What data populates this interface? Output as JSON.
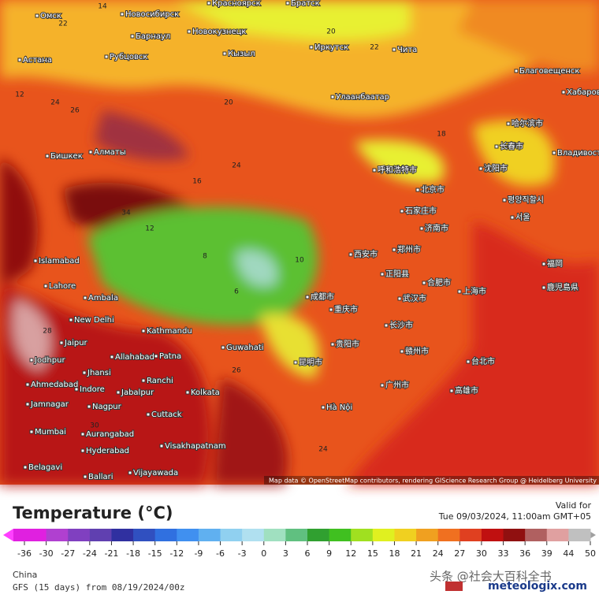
{
  "map": {
    "attribution": "Map data © OpenStreetMap contributors, rendering GIScience Research Group @ Heidelberg University",
    "cities": [
      "Омск",
      "Новосибирск",
      "Красноярск",
      "Братск",
      "Барнаул",
      "Новокузнецк",
      "Рубцовск",
      "Астана",
      "Кызыл",
      "Иркутск",
      "Чита",
      "Благовещенск",
      "Улаанбаатар",
      "Хабаровск",
      "哈尔滨市",
      "长春市",
      "Владивосток",
      "沈阳市",
      "Бишкек",
      "Алматы",
      "呼和浩特市",
      "北京市",
      "평양직할시",
      "서울",
      "石家庄市",
      "济南市",
      "Islamabad",
      "Lahore",
      "西安市",
      "郑州市",
      "福岡",
      "鹿児島県",
      "正阳县",
      "合肥市",
      "上海市",
      "成都市",
      "武汉市",
      "Ambala",
      "New Delhi",
      "Kathmandu",
      "重庆市",
      "长沙市",
      "Jaipur",
      "Guwahati",
      "Allahabad",
      "Patna",
      "贵阳市",
      "赣州市",
      "台北市",
      "Jodhpur",
      "昆明市",
      "Jhansi",
      "Ranchi",
      "Ahmedabad",
      "Indore",
      "Jabalpur",
      "广州市",
      "高雄市",
      "Kolkata",
      "Jamnagar",
      "Nagpur",
      "Hà Nội",
      "Cuttack",
      "Mumbai",
      "Aurangabad",
      "Hyderabad",
      "Visakhapatnam",
      "Belagavi",
      "Ballari",
      "Vijayawada"
    ],
    "temperatures": [
      14,
      22,
      12,
      16,
      20,
      20,
      18,
      24,
      26,
      34,
      12,
      10,
      8,
      6,
      22,
      24,
      26,
      30,
      28,
      24
    ]
  },
  "legend": {
    "title": "Temperature (°C)",
    "valid_label": "Valid for",
    "valid_time": "Tue 09/03/2024, 11:00am GMT+05",
    "ticks": [
      -36,
      -30,
      -27,
      -24,
      -21,
      -18,
      -15,
      -12,
      -9,
      -6,
      -3,
      0,
      3,
      6,
      9,
      12,
      15,
      18,
      21,
      24,
      27,
      30,
      33,
      36,
      39,
      44,
      50
    ],
    "colors": [
      "#e020e0",
      "#b040d0",
      "#8040c0",
      "#6040b0",
      "#3030a0",
      "#3050c0",
      "#3070e0",
      "#4090f0",
      "#60b0f0",
      "#90d0f0",
      "#b0e0f0",
      "#a0e0c0",
      "#60c080",
      "#30a030",
      "#40c020",
      "#a0e020",
      "#e0f020",
      "#f0d020",
      "#f0a020",
      "#f07020",
      "#e04020",
      "#c01010",
      "#901010",
      "#b06060",
      "#e0a0a0",
      "#c0c0c0"
    ]
  },
  "footer": {
    "region": "China",
    "model": "GFS (15 days) from 08/19/2024/00z",
    "watermark": "头条 @社会大百科全书",
    "brand": "meteologix.com"
  }
}
